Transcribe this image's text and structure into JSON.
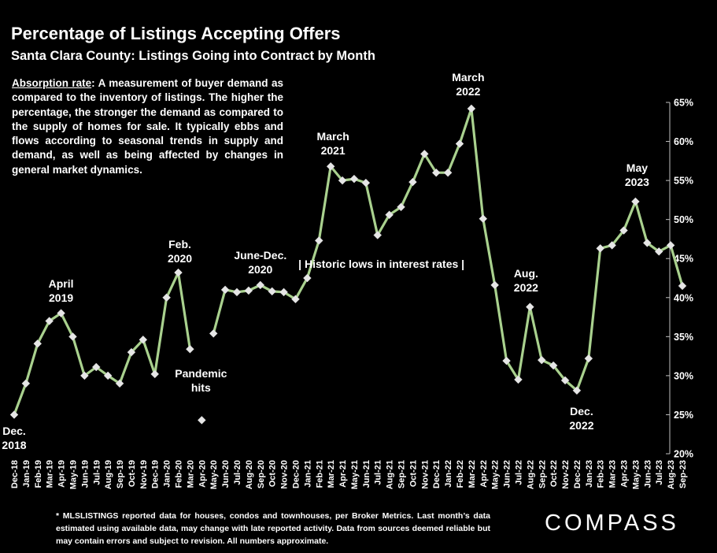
{
  "title": "Percentage of Listings Accepting Offers",
  "subtitle": "Santa Clara County: Listings Going into Contract by Month",
  "definition": {
    "term": "Absorption rate",
    "text": ":  A measurement of buyer demand as compared to the inventory of listings. The higher the percentage, the stronger the demand as compared to the supply of homes for sale. It typically ebbs and flows according to seasonal trends in supply and demand, as well as being affected by changes in general market dynamics."
  },
  "footnote": "* MLSLISTINGS reported data for houses, condos and townhouses, per Broker Metrics. Last month’s data estimated using available data, may change with late reported activity. Data from sources deemed reliable but may contain errors and subject to revision. All numbers approximate.",
  "logo": "COMPASS",
  "colors": {
    "background": "#000000",
    "line": "#a9d18e",
    "text": "#ffffff",
    "axis": "#bfbfbf"
  },
  "chart_data": {
    "type": "line",
    "title": "Percentage of Listings Accepting Offers",
    "subtitle": "Santa Clara County: Listings Going into Contract by Month",
    "xlabel": "",
    "ylabel": "",
    "y_axis_position": "right",
    "ylim": [
      20,
      65
    ],
    "yticks": [
      "20%",
      "25%",
      "30%",
      "35%",
      "40%",
      "45%",
      "50%",
      "55%",
      "60%",
      "65%"
    ],
    "grid": false,
    "categories": [
      "Dec-18",
      "Jan-19",
      "Feb-19",
      "Mar-19",
      "Apr-19",
      "May-19",
      "Jun-19",
      "Jul-19",
      "Aug-19",
      "Sep-19",
      "Oct-19",
      "Nov-19",
      "Dec-19",
      "Jan-20",
      "Feb-20",
      "Mar-20",
      "Apr-20",
      "May-20",
      "Jun-20",
      "Jul-20",
      "Aug-20",
      "Sep-20",
      "Oct-20",
      "Nov-20",
      "Dec-20",
      "Jan-21",
      "Feb-21",
      "Mar-21",
      "Apr-21",
      "May-21",
      "Jun-21",
      "Jul-21",
      "Aug-21",
      "Sep-21",
      "Oct-21",
      "Nov-21",
      "Dec-21",
      "Jan-22",
      "Feb-22",
      "Mar-22",
      "Apr-22",
      "May-22",
      "Jun-22",
      "Jul-22",
      "Aug-22",
      "Sep-22",
      "Oct-22",
      "Nov-22",
      "Dec-22",
      "Jan-23",
      "Feb-23",
      "Mar-23",
      "Apr-23",
      "May-23",
      "Jun-23",
      "Jul-23",
      "Aug-23",
      "Sep-23"
    ],
    "series": [
      {
        "values": [
          25.0,
          29.0,
          34.1,
          37.0,
          38.0,
          35.0,
          30.0,
          31.1,
          30.0,
          29.0,
          33.0,
          34.6,
          30.2,
          40.0,
          43.2,
          33.4,
          24.3,
          35.4,
          41.0,
          40.7,
          40.9,
          41.6,
          40.8,
          40.7,
          39.8,
          42.5,
          47.3,
          56.8,
          55.0,
          55.2,
          54.7,
          48.0,
          50.6,
          51.6,
          54.8,
          58.4,
          56.0,
          56.0,
          59.7,
          64.2,
          50.1,
          41.6,
          31.9,
          29.5,
          38.8,
          32.0,
          31.3,
          29.4,
          28.1,
          32.2,
          46.3,
          46.7,
          48.6,
          52.3,
          47.0,
          45.9,
          46.7,
          41.5
        ],
        "color": "#a9d18e"
      }
    ],
    "gaps_after": [
      "Mar-20",
      "Apr-20"
    ],
    "annotations": [
      {
        "text": [
          "Dec.",
          "2018"
        ],
        "at": "Dec-18"
      },
      {
        "text": [
          "April",
          "2019"
        ],
        "at": "Apr-19"
      },
      {
        "text": [
          "Feb.",
          "2020"
        ],
        "at": "Feb-20"
      },
      {
        "text": [
          "Pandemic",
          "hits"
        ],
        "at": "Apr-20"
      },
      {
        "text": [
          "June-Dec.",
          "2020"
        ],
        "at": "Sep-20"
      },
      {
        "text": [
          "March",
          "2021"
        ],
        "at": "Mar-21"
      },
      {
        "text": [
          "| Historic lows in interest rates |"
        ],
        "at": "Aug-21"
      },
      {
        "text": [
          "March",
          "2022"
        ],
        "at": "Mar-22"
      },
      {
        "text": [
          "Aug.",
          "2022"
        ],
        "at": "Aug-22"
      },
      {
        "text": [
          "Dec.",
          "2022"
        ],
        "at": "Dec-22"
      },
      {
        "text": [
          "May",
          "2023"
        ],
        "at": "May-23"
      }
    ]
  }
}
